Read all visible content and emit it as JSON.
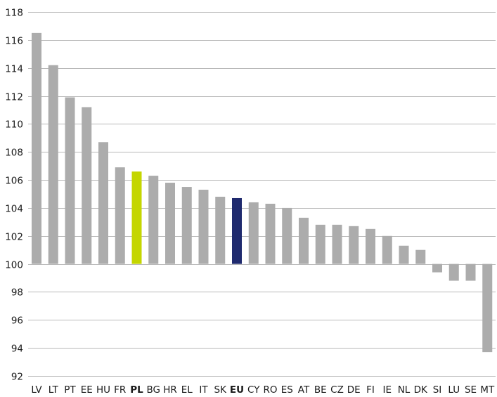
{
  "chart_data": {
    "type": "bar",
    "title": "",
    "xlabel": "",
    "ylabel": "",
    "baseline": 100,
    "ylim": [
      92,
      118
    ],
    "yticks": [
      92,
      94,
      96,
      98,
      100,
      102,
      104,
      106,
      108,
      110,
      112,
      114,
      116,
      118
    ],
    "grid": true,
    "legend": "none",
    "categories": [
      "LV",
      "LT",
      "PT",
      "EE",
      "HU",
      "FR",
      "PL",
      "BG",
      "HR",
      "EL",
      "IT",
      "SK",
      "EU",
      "CY",
      "RO",
      "ES",
      "AT",
      "BE",
      "CZ",
      "DE",
      "FI",
      "IE",
      "NL",
      "DK",
      "SI",
      "LU",
      "SE",
      "MT"
    ],
    "values": [
      116.5,
      114.2,
      111.9,
      111.2,
      108.7,
      106.9,
      106.6,
      106.3,
      105.8,
      105.5,
      105.3,
      104.8,
      104.7,
      104.4,
      104.3,
      104.0,
      103.3,
      102.8,
      102.8,
      102.7,
      102.5,
      102.0,
      101.3,
      101.0,
      99.4,
      98.8,
      98.8,
      93.7
    ],
    "highlight": {
      "PL": "#c4d600",
      "EU": "#1f2a6e"
    },
    "bold_categories": [
      "PL",
      "EU"
    ],
    "colors": {
      "default_bar": "#acacac",
      "grid": "#b8b8b8",
      "text": "#1a1a1a"
    }
  }
}
